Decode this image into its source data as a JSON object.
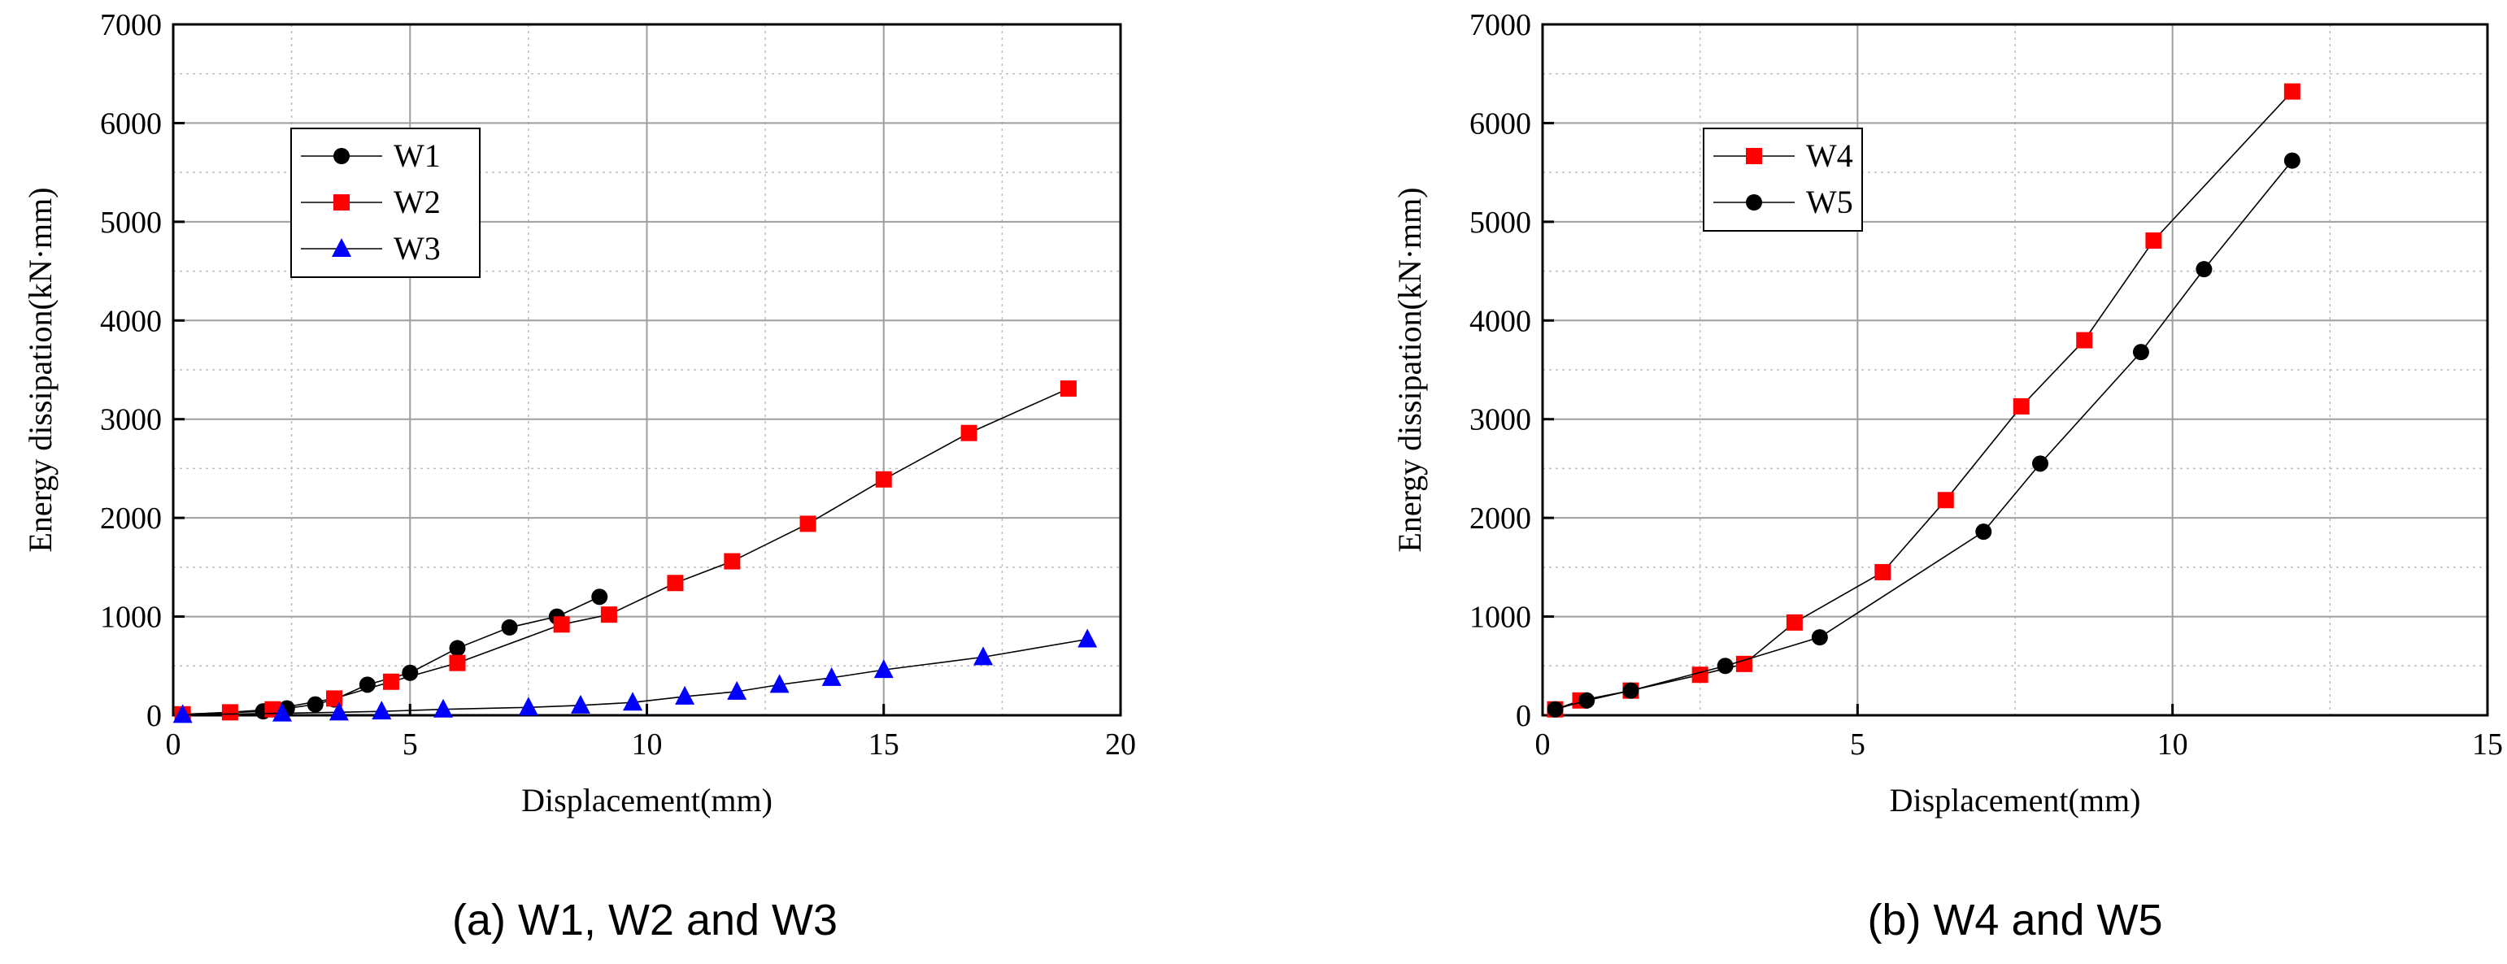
{
  "chart_data": [
    {
      "type": "line",
      "caption": "(a) W1, W2 and W3",
      "xlabel": "Displacement(mm)",
      "ylabel": "Energy dissipation(kN·mm)",
      "xlim": [
        0,
        20
      ],
      "ylim": [
        0,
        7000
      ],
      "xticks": [
        0,
        5,
        10,
        15,
        20
      ],
      "yticks": [
        0,
        1000,
        2000,
        3000,
        4000,
        5000,
        6000,
        7000
      ],
      "grid": true,
      "legend_position": "upper-left",
      "series": [
        {
          "name": "W1",
          "marker": "circle",
          "color": "#000000",
          "x": [
            0.2,
            1.9,
            2.4,
            3.0,
            3.4,
            4.1,
            5.0,
            6.0,
            7.1,
            8.1,
            9.0
          ],
          "y": [
            10,
            40,
            70,
            110,
            160,
            310,
            430,
            680,
            890,
            1000,
            1200
          ]
        },
        {
          "name": "W2",
          "marker": "square",
          "color": "#ff0000",
          "x": [
            0.2,
            1.2,
            2.1,
            3.4,
            4.6,
            6.0,
            8.2,
            9.2,
            10.6,
            11.8,
            13.4,
            15.0,
            16.8,
            18.9
          ],
          "y": [
            10,
            30,
            60,
            170,
            340,
            530,
            920,
            1020,
            1340,
            1560,
            1940,
            2390,
            2860,
            3310
          ]
        },
        {
          "name": "W3",
          "marker": "triangle",
          "color": "#0000ff",
          "x": [
            0.2,
            2.3,
            3.5,
            4.4,
            5.7,
            7.5,
            8.6,
            9.7,
            10.8,
            11.9,
            12.8,
            13.9,
            15.0,
            17.1,
            19.3
          ],
          "y": [
            5,
            20,
            30,
            40,
            60,
            80,
            100,
            130,
            190,
            240,
            310,
            380,
            460,
            590,
            770
          ]
        }
      ]
    },
    {
      "type": "line",
      "caption": "(b) W4 and W5",
      "xlabel": "Displacement(mm)",
      "ylabel": "Energy dissipation(kN·mm)",
      "xlim": [
        0,
        15
      ],
      "ylim": [
        0,
        7000
      ],
      "xticks": [
        0,
        5,
        10,
        15
      ],
      "yticks": [
        0,
        1000,
        2000,
        3000,
        4000,
        5000,
        6000,
        7000
      ],
      "grid": true,
      "legend_position": "upper-left",
      "series": [
        {
          "name": "W4",
          "marker": "square",
          "color": "#ff0000",
          "x": [
            0.2,
            0.6,
            1.4,
            2.5,
            3.2,
            4.0,
            5.4,
            6.4,
            7.6,
            8.6,
            9.7,
            11.9
          ],
          "y": [
            60,
            150,
            250,
            410,
            520,
            940,
            1450,
            2180,
            3130,
            3800,
            4810,
            6320
          ]
        },
        {
          "name": "W5",
          "marker": "circle",
          "color": "#000000",
          "x": [
            0.2,
            0.7,
            1.4,
            2.9,
            4.4,
            7.0,
            7.9,
            9.5,
            10.5,
            11.9
          ],
          "y": [
            60,
            150,
            250,
            500,
            790,
            1860,
            2550,
            3680,
            4520,
            5620
          ]
        }
      ]
    }
  ]
}
